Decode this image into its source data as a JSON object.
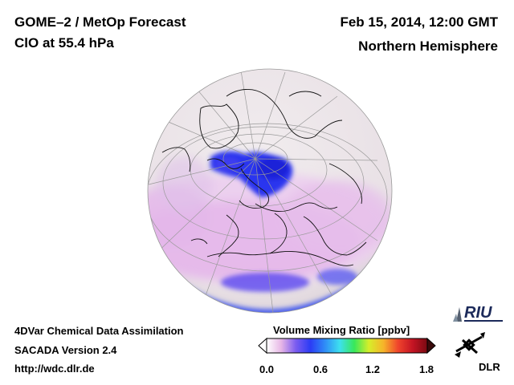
{
  "header": {
    "title": "GOME–2 / MetOp Forecast",
    "subtitle": "ClO at 55.4 hPa",
    "datetime": "Feb 15, 2014, 12:00 GMT",
    "region": "Northern Hemisphere"
  },
  "footer": {
    "line1": "4DVar Chemical Data Assimilation",
    "line2": "SACADA Version 2.4",
    "line3": "http://wdc.dlr.de"
  },
  "colorbar": {
    "title": "Volume Mixing Ratio [ppbv]",
    "ticks": [
      "0.0",
      "0.6",
      "1.2",
      "1.8"
    ],
    "range": [
      0.0,
      1.8
    ],
    "colors": [
      "#ffffff",
      "#e7b6e6",
      "#7b5cf0",
      "#2b3cf5",
      "#2f8df7",
      "#3de0ef",
      "#38e85a",
      "#d6ee2a",
      "#f6b42a",
      "#f0442c",
      "#c41424",
      "#7a0a12"
    ]
  },
  "logos": {
    "riu": "RIU",
    "dlr": "DLR"
  },
  "map": {
    "background_color": "#ece7e9",
    "coast_color": "#111111",
    "grid_color": "#9a9a9a",
    "low_color": "#ffffff",
    "mid_color": "#ddb0e8",
    "high_color": "#2a35f0"
  }
}
